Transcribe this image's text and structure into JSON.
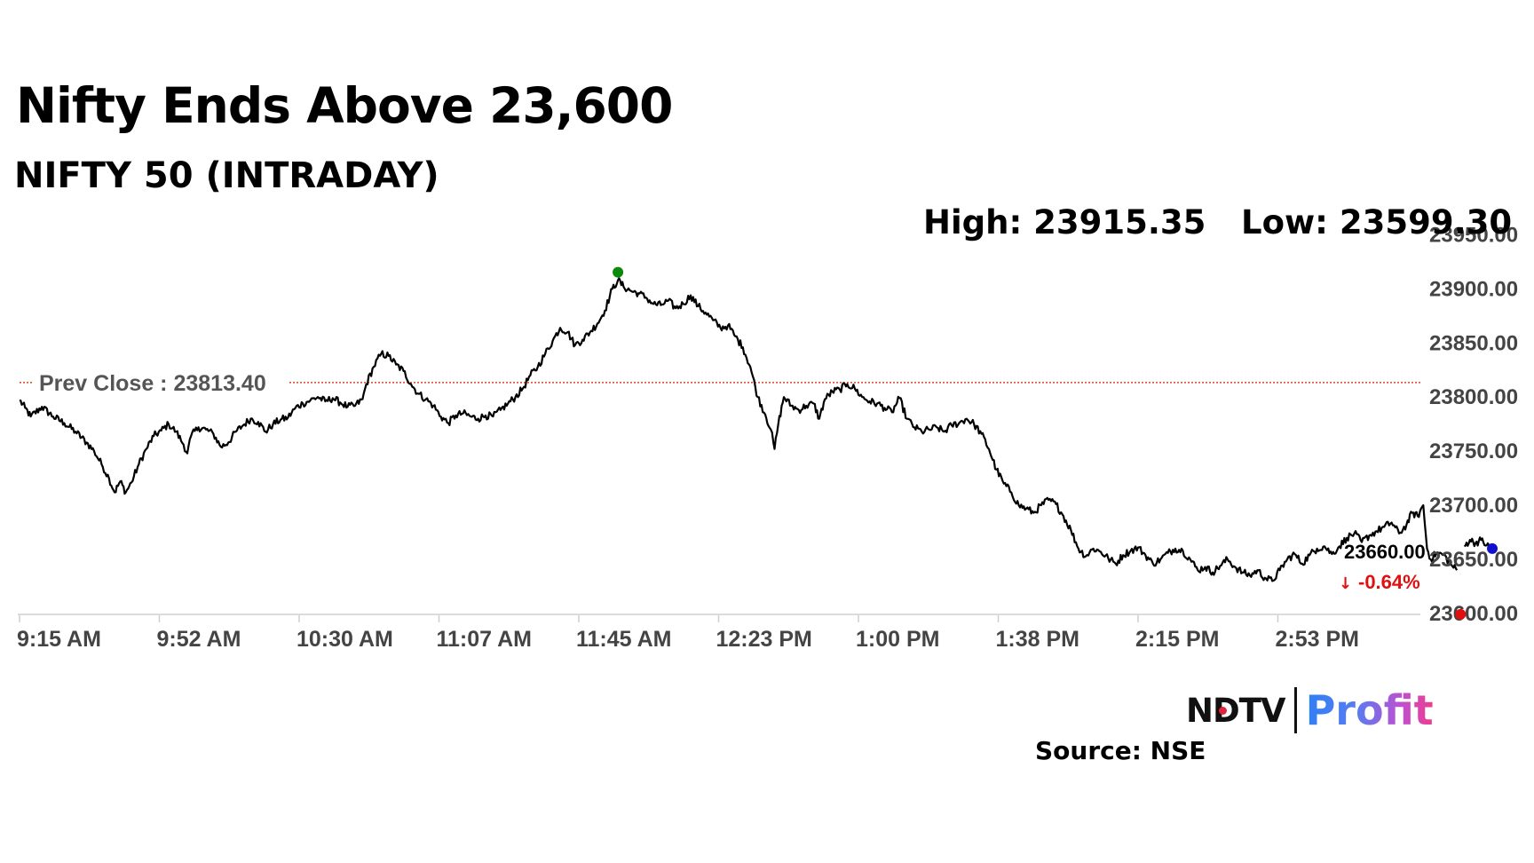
{
  "header": {
    "title": "Nifty Ends Above 23,600",
    "subtitle": "NIFTY 50 (INTRADAY)",
    "high_text": "High: 23915.35",
    "low_text": "Low: 23599.30"
  },
  "footer": {
    "logo_ndtv": "NDTV",
    "logo_profit": "Profit",
    "source": "Source: NSE"
  },
  "chart_data": {
    "type": "line",
    "title": "NIFTY 50 (INTRADAY)",
    "xlabel": "",
    "ylabel": "",
    "x_start": "9:15 AM",
    "x_end": "3:30 PM",
    "x_tick_labels": [
      "9:15 AM",
      "9:52 AM",
      "10:30 AM",
      "11:07 AM",
      "11:45 AM",
      "12:23 PM",
      "1:00 PM",
      "1:38 PM",
      "2:15 PM",
      "2:53 PM"
    ],
    "x_tick_minutes_from_open": [
      0,
      37.5,
      75,
      112.5,
      150,
      187.5,
      225,
      262.5,
      300,
      337.5
    ],
    "y_tick_labels": [
      "23600.00",
      "23650.00",
      "23700.00",
      "23750.00",
      "23800.00",
      "23850.00",
      "23900.00",
      "23950.00"
    ],
    "y_ticks": [
      23600,
      23650,
      23700,
      23750,
      23800,
      23850,
      23900,
      23950
    ],
    "ylim": [
      23600,
      23950
    ],
    "prev_close": 23813.4,
    "prev_close_label": "Prev Close : 23813.40",
    "high": 23915.35,
    "low": 23599.3,
    "last_value_label": "23660.00",
    "change_label": "-0.64%",
    "grid": false,
    "line_color": "#000000",
    "prev_close_color": "#cc2200",
    "high_marker_color": "#0a8a0a",
    "low_marker_color": "#e01010",
    "last_marker_color": "#1010cc",
    "change_color": "#e01010",
    "series": [
      {
        "anchors": [
          [
            0,
            23797
          ],
          [
            1.5,
            23790
          ],
          [
            3,
            23782
          ],
          [
            6,
            23791
          ],
          [
            9,
            23782
          ],
          [
            12,
            23776
          ],
          [
            15,
            23768
          ],
          [
            18,
            23758
          ],
          [
            20,
            23750
          ],
          [
            22,
            23738
          ],
          [
            24,
            23725
          ],
          [
            25.5,
            23712
          ],
          [
            27,
            23722
          ],
          [
            28.5,
            23712
          ],
          [
            30,
            23721
          ],
          [
            32,
            23738
          ],
          [
            34,
            23752
          ],
          [
            36,
            23764
          ],
          [
            38,
            23769
          ],
          [
            40,
            23775
          ],
          [
            42,
            23768
          ],
          [
            44,
            23756
          ],
          [
            45,
            23748
          ],
          [
            46,
            23764
          ],
          [
            48,
            23772
          ],
          [
            50,
            23770
          ],
          [
            52,
            23766
          ],
          [
            54,
            23754
          ],
          [
            56,
            23758
          ],
          [
            58,
            23768
          ],
          [
            60,
            23774
          ],
          [
            62,
            23780
          ],
          [
            64,
            23777
          ],
          [
            66,
            23768
          ],
          [
            68,
            23775
          ],
          [
            70,
            23779
          ],
          [
            72,
            23781
          ],
          [
            74,
            23790
          ],
          [
            76,
            23794
          ],
          [
            78,
            23797
          ],
          [
            80,
            23800
          ],
          [
            82,
            23796
          ],
          [
            84,
            23799
          ],
          [
            86,
            23795
          ],
          [
            88,
            23791
          ],
          [
            90,
            23792
          ],
          [
            92,
            23798
          ],
          [
            93,
            23812
          ],
          [
            95,
            23828
          ],
          [
            97,
            23840
          ],
          [
            99,
            23838
          ],
          [
            101,
            23830
          ],
          [
            103,
            23824
          ],
          [
            105,
            23812
          ],
          [
            107,
            23803
          ],
          [
            109,
            23798
          ],
          [
            111,
            23792
          ],
          [
            113,
            23782
          ],
          [
            115,
            23776
          ],
          [
            117,
            23783
          ],
          [
            119,
            23785
          ],
          [
            121,
            23782
          ],
          [
            123,
            23780
          ],
          [
            125,
            23783
          ],
          [
            127,
            23782
          ],
          [
            129,
            23788
          ],
          [
            131,
            23794
          ],
          [
            133,
            23800
          ],
          [
            135,
            23808
          ],
          [
            137,
            23820
          ],
          [
            139,
            23828
          ],
          [
            141,
            23840
          ],
          [
            143,
            23852
          ],
          [
            145,
            23864
          ],
          [
            147,
            23860
          ],
          [
            149,
            23848
          ],
          [
            151,
            23853
          ],
          [
            153,
            23860
          ],
          [
            155,
            23868
          ],
          [
            157,
            23880
          ],
          [
            159,
            23900
          ],
          [
            160.5,
            23908
          ],
          [
            162,
            23902
          ],
          [
            164,
            23898
          ],
          [
            166,
            23896
          ],
          [
            168,
            23892
          ],
          [
            170,
            23886
          ],
          [
            172,
            23885
          ],
          [
            174,
            23889
          ],
          [
            176,
            23882
          ],
          [
            178,
            23886
          ],
          [
            180,
            23894
          ],
          [
            182,
            23884
          ],
          [
            184,
            23878
          ],
          [
            186,
            23871
          ],
          [
            188,
            23864
          ],
          [
            190,
            23866
          ],
          [
            192,
            23856
          ],
          [
            194,
            23846
          ],
          [
            196,
            23828
          ],
          [
            198,
            23800
          ],
          [
            200,
            23784
          ],
          [
            201.5,
            23770
          ],
          [
            202.5,
            23752
          ],
          [
            203.5,
            23775
          ],
          [
            205,
            23800
          ],
          [
            207,
            23792
          ],
          [
            209,
            23788
          ],
          [
            211,
            23792
          ],
          [
            213,
            23794
          ],
          [
            214.5,
            23780
          ],
          [
            216,
            23798
          ],
          [
            218,
            23805
          ],
          [
            220,
            23807
          ],
          [
            222,
            23812
          ],
          [
            224,
            23808
          ],
          [
            226,
            23800
          ],
          [
            228,
            23796
          ],
          [
            230,
            23794
          ],
          [
            232,
            23790
          ],
          [
            234,
            23786
          ],
          [
            236,
            23799
          ],
          [
            238,
            23780
          ],
          [
            240,
            23772
          ],
          [
            242,
            23768
          ],
          [
            244,
            23770
          ],
          [
            246,
            23772
          ],
          [
            248,
            23768
          ],
          [
            250,
            23774
          ],
          [
            252,
            23776
          ],
          [
            254,
            23780
          ],
          [
            256,
            23775
          ],
          [
            258,
            23766
          ],
          [
            260,
            23752
          ],
          [
            262,
            23733
          ],
          [
            264,
            23720
          ],
          [
            266,
            23712
          ],
          [
            268,
            23700
          ],
          [
            270,
            23697
          ],
          [
            272,
            23693
          ],
          [
            274,
            23700
          ],
          [
            276,
            23705
          ],
          [
            278,
            23701
          ],
          [
            280,
            23690
          ],
          [
            282,
            23677
          ],
          [
            284,
            23660
          ],
          [
            286,
            23653
          ],
          [
            288,
            23660
          ],
          [
            290,
            23657
          ],
          [
            292,
            23651
          ],
          [
            294,
            23646
          ],
          [
            296,
            23654
          ],
          [
            298,
            23658
          ],
          [
            300,
            23661
          ],
          [
            302,
            23654
          ],
          [
            304,
            23646
          ],
          [
            306,
            23650
          ],
          [
            308,
            23656
          ],
          [
            310,
            23660
          ],
          [
            312,
            23658
          ],
          [
            314,
            23650
          ],
          [
            316,
            23640
          ],
          [
            318,
            23643
          ],
          [
            320,
            23638
          ],
          [
            322,
            23644
          ],
          [
            324,
            23650
          ],
          [
            326,
            23643
          ],
          [
            328,
            23638
          ],
          [
            330,
            23635
          ],
          [
            332,
            23640
          ],
          [
            334,
            23633
          ],
          [
            336,
            23630
          ],
          [
            338,
            23640
          ],
          [
            340,
            23650
          ],
          [
            342,
            23655
          ],
          [
            344,
            23646
          ],
          [
            346,
            23654
          ],
          [
            348,
            23660
          ],
          [
            350,
            23662
          ],
          [
            352,
            23655
          ],
          [
            354,
            23662
          ],
          [
            356,
            23670
          ],
          [
            358,
            23674
          ],
          [
            360,
            23666
          ],
          [
            362,
            23672
          ],
          [
            364,
            23676
          ],
          [
            366,
            23680
          ],
          [
            368,
            23684
          ],
          [
            370,
            23674
          ],
          [
            372,
            23682
          ],
          [
            373.5,
            23693
          ],
          [
            375,
            23690
          ],
          [
            376.5,
            23700
          ],
          [
            377.5,
            23660
          ],
          [
            378.5,
            23650
          ],
          [
            380,
            23656
          ],
          [
            382,
            23654
          ],
          [
            384,
            23645
          ],
          [
            385.5,
            23640
          ]
        ]
      },
      {
        "anchors": [
          [
            387.5,
            23662
          ],
          [
            389,
            23668
          ],
          [
            390.5,
            23665
          ],
          [
            392,
            23668
          ],
          [
            393.5,
            23663
          ],
          [
            395,
            23660
          ]
        ]
      }
    ]
  }
}
